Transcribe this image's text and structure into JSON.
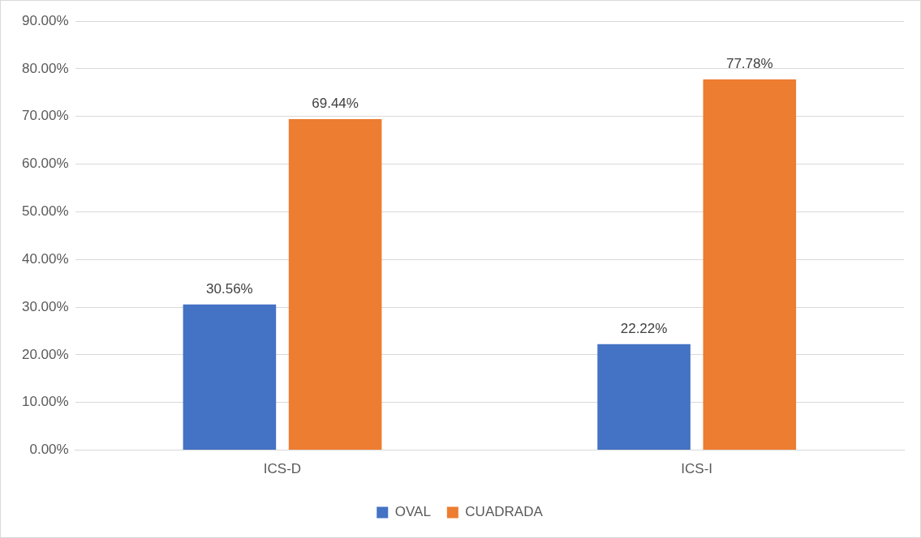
{
  "chart_data": {
    "type": "bar",
    "categories": [
      "ICS-D",
      "ICS-I"
    ],
    "series": [
      {
        "name": "OVAL",
        "color": "#4472c4",
        "values": [
          30.56,
          22.22
        ],
        "value_labels": [
          "30.56%",
          "22.22%"
        ]
      },
      {
        "name": "CUADRADA",
        "color": "#ed7d31",
        "values": [
          69.44,
          77.78
        ],
        "value_labels": [
          "69.44%",
          "77.78%"
        ]
      }
    ],
    "ylim": [
      0,
      90
    ],
    "yticks": [
      {
        "value": 0,
        "label": "0.00%"
      },
      {
        "value": 10,
        "label": "10.00%"
      },
      {
        "value": 20,
        "label": "20.00%"
      },
      {
        "value": 30,
        "label": "30.00%"
      },
      {
        "value": 40,
        "label": "40.00%"
      },
      {
        "value": 50,
        "label": "50.00%"
      },
      {
        "value": 60,
        "label": "60.00%"
      },
      {
        "value": 70,
        "label": "70.00%"
      },
      {
        "value": 80,
        "label": "80.00%"
      },
      {
        "value": 90,
        "label": "90.00%"
      }
    ],
    "grid": "y",
    "legend": "bottom"
  }
}
